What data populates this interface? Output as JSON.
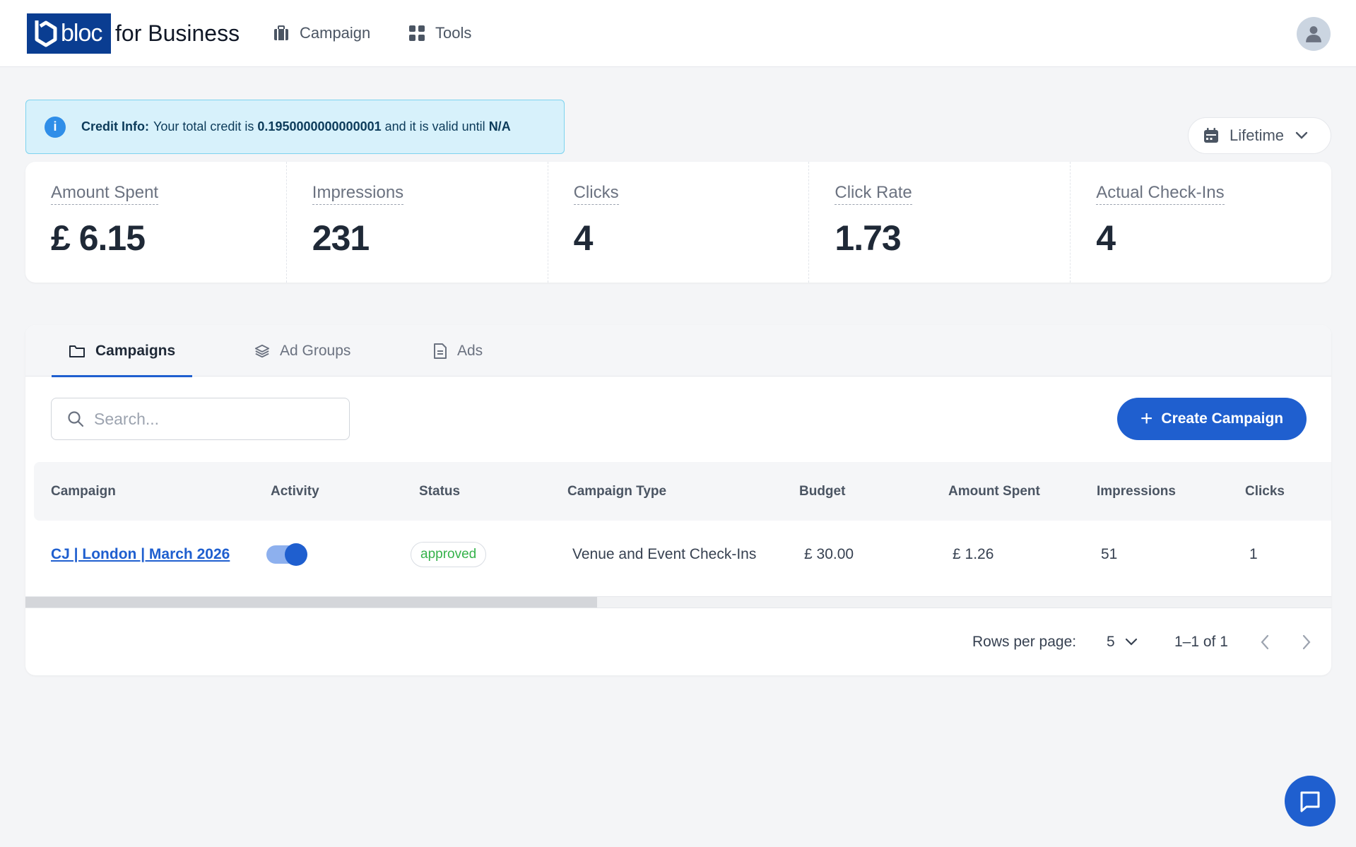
{
  "header": {
    "logo_word": "bloc",
    "logo_suffix": "for Business",
    "nav": [
      {
        "label": "Campaign",
        "icon": "briefcase-icon"
      },
      {
        "label": "Tools",
        "icon": "grid-icon"
      }
    ],
    "avatar_icon": "user-icon"
  },
  "credit": {
    "label": "Credit Info:",
    "text1": "Your total credit is",
    "amount": "0.1950000000000001",
    "text2": "and it is valid until",
    "valid_until": "N/A"
  },
  "date_filter": {
    "label": "Lifetime"
  },
  "metrics": [
    {
      "label": "Amount Spent",
      "value": "£ 6.15"
    },
    {
      "label": "Impressions",
      "value": "231"
    },
    {
      "label": "Clicks",
      "value": "4"
    },
    {
      "label": "Click Rate",
      "value": "1.73"
    },
    {
      "label": "Actual Check-Ins",
      "value": "4"
    }
  ],
  "tabs": [
    {
      "label": "Campaigns",
      "icon": "folder-icon",
      "active": true
    },
    {
      "label": "Ad Groups",
      "icon": "layers-icon",
      "active": false
    },
    {
      "label": "Ads",
      "icon": "document-icon",
      "active": false
    }
  ],
  "search": {
    "placeholder": "Search..."
  },
  "create_button": {
    "label": "Create Campaign"
  },
  "table": {
    "columns": [
      "Campaign",
      "Activity",
      "Status",
      "Campaign Type",
      "Budget",
      "Amount Spent",
      "Impressions",
      "Clicks"
    ],
    "rows": [
      {
        "campaign": "CJ | London | March 2026",
        "activity_on": true,
        "status": "approved",
        "type": "Venue and Event Check-Ins",
        "budget": "£ 30.00",
        "spent": "£ 1.26",
        "impressions": "51",
        "clicks": "1"
      }
    ]
  },
  "pagination": {
    "rows_label": "Rows per page:",
    "rows_value": "5",
    "range": "1–1 of 1"
  },
  "colors": {
    "primary": "#1f5fcf",
    "logo_bg": "#0a3d91",
    "approved": "#35b24a",
    "info_bg": "#d7f1fb"
  }
}
